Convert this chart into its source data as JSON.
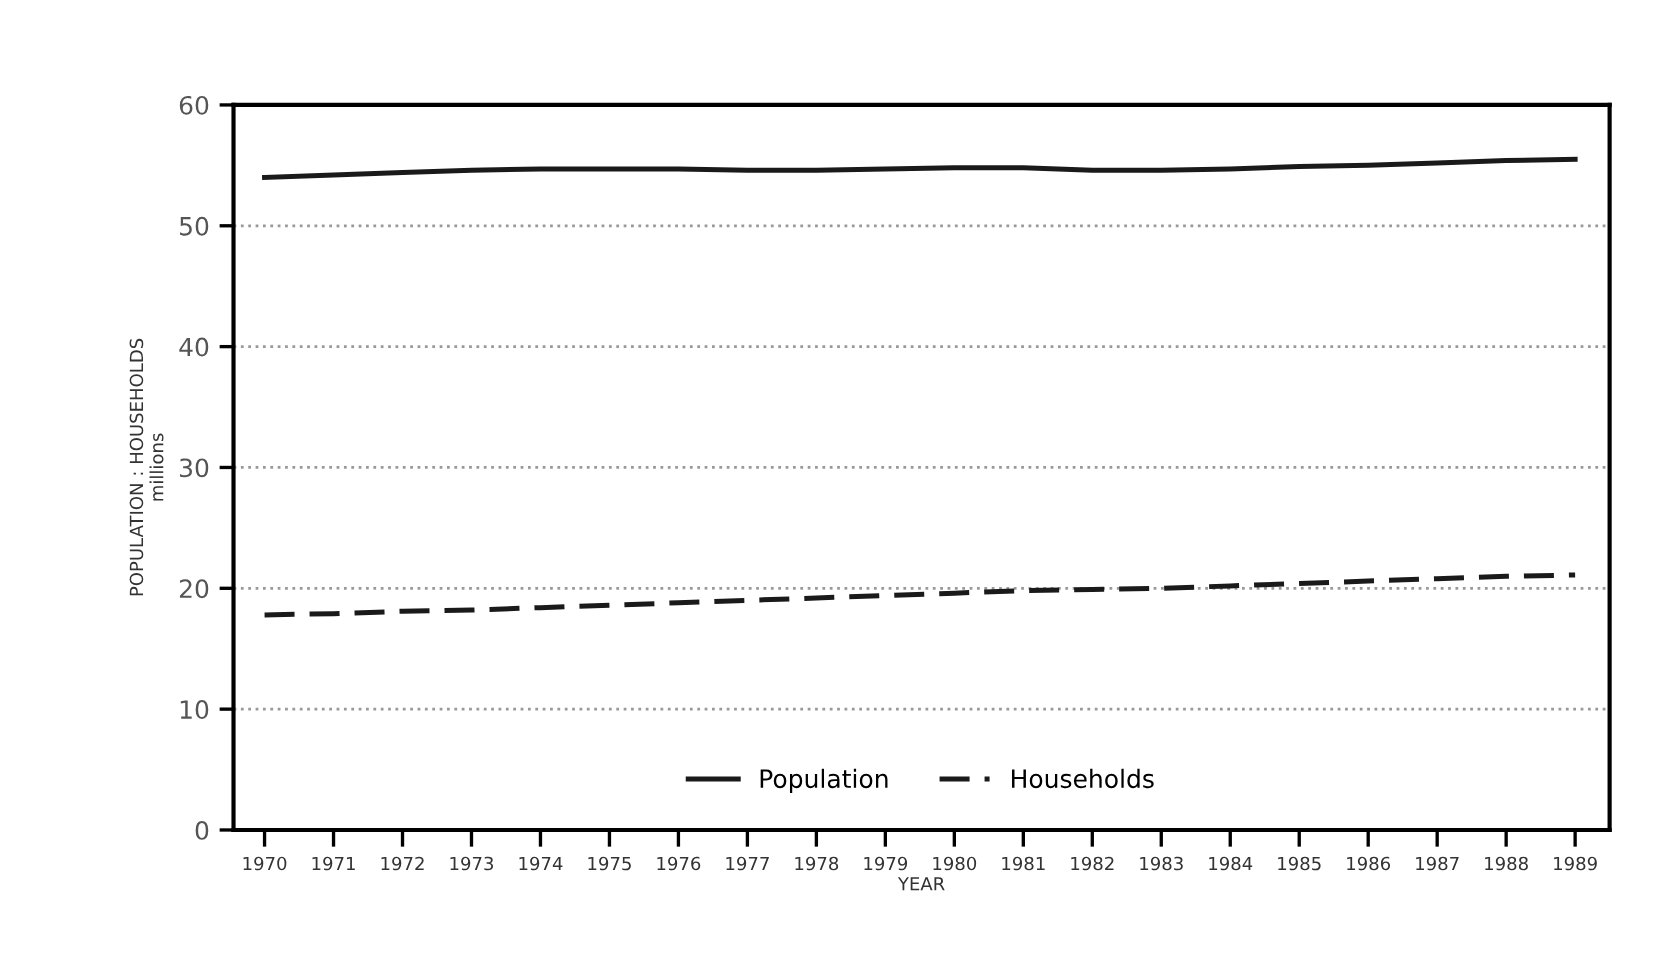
{
  "chart_data": {
    "type": "line",
    "xlabel": "YEAR",
    "ylabel": "POPULATION : HOUSEHOLDS\nmillions",
    "x": [
      1970,
      1971,
      1972,
      1973,
      1974,
      1975,
      1976,
      1977,
      1978,
      1979,
      1980,
      1981,
      1982,
      1983,
      1984,
      1985,
      1986,
      1987,
      1988,
      1989
    ],
    "series": [
      {
        "name": "Population",
        "color": "#1a1a1a",
        "line_style": "solid",
        "values": [
          54.0,
          54.2,
          54.4,
          54.6,
          54.7,
          54.7,
          54.7,
          54.6,
          54.6,
          54.7,
          54.8,
          54.8,
          54.6,
          54.6,
          54.7,
          54.9,
          55.0,
          55.2,
          55.4,
          55.5
        ]
      },
      {
        "name": "Households",
        "color": "#1a1a1a",
        "line_style": "dashed",
        "values": [
          17.8,
          17.9,
          18.1,
          18.2,
          18.4,
          18.6,
          18.8,
          19.0,
          19.2,
          19.4,
          19.6,
          19.8,
          19.9,
          20.0,
          20.2,
          20.4,
          20.6,
          20.8,
          21.0,
          21.1
        ]
      }
    ],
    "xlim": [
      1969.55,
      1989.5
    ],
    "xticks": [
      1970,
      1971,
      1972,
      1973,
      1974,
      1975,
      1976,
      1977,
      1978,
      1979,
      1980,
      1981,
      1982,
      1983,
      1984,
      1985,
      1986,
      1987,
      1988,
      1989
    ],
    "ylim": [
      0,
      60
    ],
    "yticks": [
      0,
      10,
      20,
      30,
      40,
      50,
      60
    ],
    "grid": "y",
    "legend": "bottom",
    "marker": "none"
  }
}
